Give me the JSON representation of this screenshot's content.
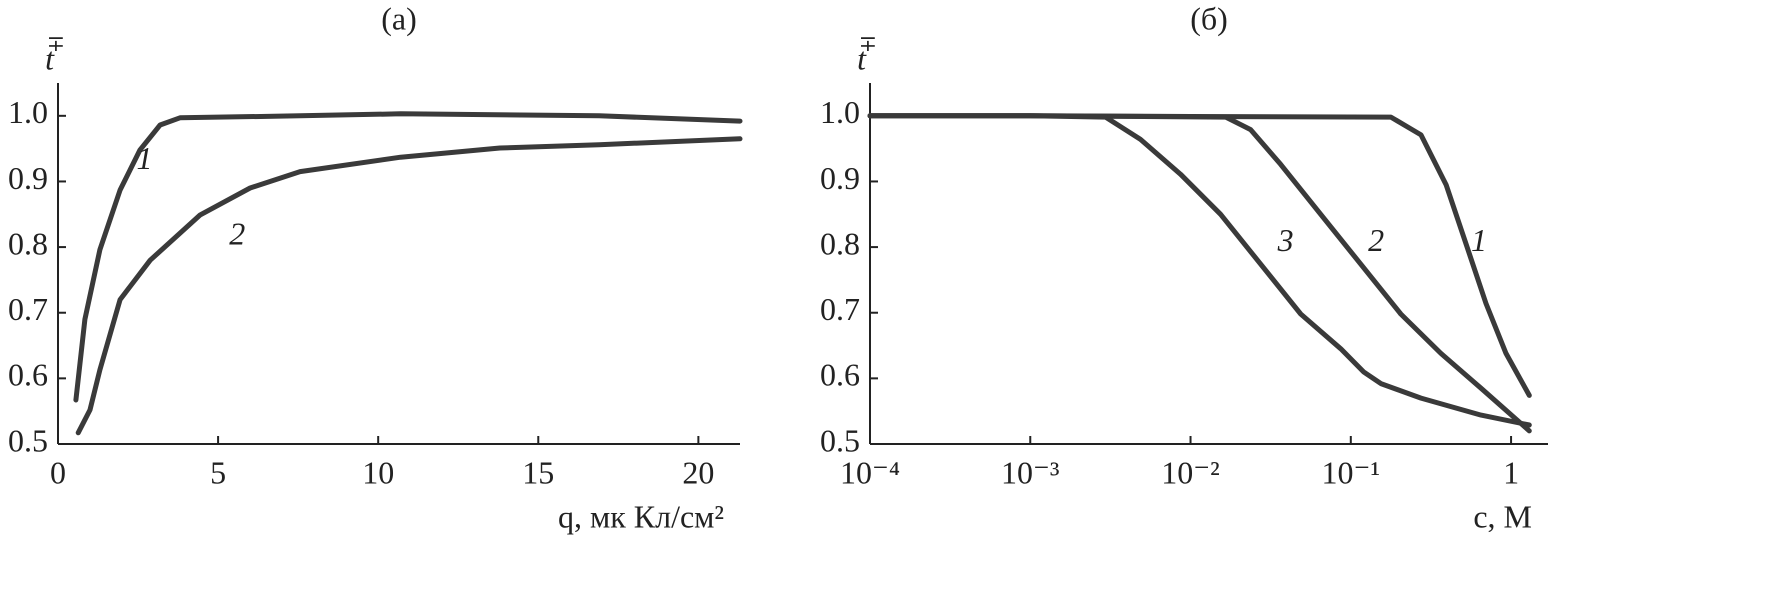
{
  "chart_data": [
    {
      "type": "line",
      "title": "(a)",
      "x_label": "q, мк Кл/см²",
      "y_label": "t",
      "y_label_superscript": "∓",
      "xscale": "linear",
      "xlim": [
        0,
        21.3
      ],
      "ylim": [
        0.5,
        1.05
      ],
      "xticks": [
        0,
        5,
        10,
        15,
        20
      ],
      "yticks": [
        0.5,
        0.6,
        0.7,
        0.8,
        0.9,
        {
          "value": 1,
          "label": "1.0"
        }
      ],
      "series": [
        {
          "name": "1",
          "color": "#3a3a3a",
          "label_x": 2.7,
          "label_y": 0.93,
          "x": [
            0.56,
            0.84,
            1.31,
            1.94,
            2.56,
            3.19,
            3.81,
            7.56,
            10.7,
            16.9,
            21.3
          ],
          "values": [
            0.567,
            0.69,
            0.796,
            0.887,
            0.948,
            0.986,
            0.997,
            1.0,
            1.003,
            1.0,
            0.992
          ]
        },
        {
          "name": "2",
          "color": "#3a3a3a",
          "label_x": 5.6,
          "label_y": 0.815,
          "x": [
            0.63,
            1.0,
            1.31,
            1.94,
            2.88,
            4.44,
            6.0,
            7.56,
            10.7,
            13.8,
            16.9,
            21.3
          ],
          "values": [
            0.517,
            0.552,
            0.613,
            0.72,
            0.78,
            0.849,
            0.89,
            0.915,
            0.937,
            0.951,
            0.956,
            0.965
          ]
        }
      ]
    },
    {
      "type": "line",
      "title": "(б)",
      "x_label": "c, M",
      "y_label": "t",
      "y_label_superscript": "∓",
      "xscale": "log",
      "xlim": [
        0.0001,
        1.7
      ],
      "ylim": [
        0.5,
        1.05
      ],
      "xticks": [
        {
          "value": 0.0001,
          "label": "10⁻⁴"
        },
        {
          "value": 0.001,
          "label": "10⁻³"
        },
        {
          "value": 0.01,
          "label": "10⁻²"
        },
        {
          "value": 0.1,
          "label": "10⁻¹"
        },
        1
      ],
      "yticks": [
        0.5,
        0.6,
        0.7,
        0.8,
        0.9,
        {
          "value": 1,
          "label": "1.0"
        }
      ],
      "series": [
        {
          "name": "1",
          "color": "#3a3a3a",
          "label_x": 0.631,
          "label_y": 0.805,
          "x": [
            0.0001,
            0.001,
            0.01,
            0.178,
            0.274,
            0.393,
            0.523,
            0.698,
            0.93,
            1.3
          ],
          "values": [
            1.0,
            1.0,
            0.999,
            0.998,
            0.971,
            0.895,
            0.805,
            0.714,
            0.638,
            0.574
          ]
        },
        {
          "name": "2",
          "color": "#3a3a3a",
          "label_x": 0.144,
          "label_y": 0.805,
          "x": [
            0.0001,
            0.001,
            0.0166,
            0.0237,
            0.0365,
            0.0649,
            0.1155,
            0.205,
            0.365,
            0.649,
            1.3
          ],
          "values": [
            1.0,
            1.0,
            0.998,
            0.979,
            0.926,
            0.85,
            0.774,
            0.698,
            0.638,
            0.585,
            0.52
          ]
        },
        {
          "name": "3",
          "color": "#3a3a3a",
          "label_x": 0.0392,
          "label_y": 0.805,
          "x": [
            0.0001,
            0.001,
            0.00295,
            0.00487,
            0.00866,
            0.0154,
            0.0274,
            0.0487,
            0.0866,
            0.12,
            0.154,
            0.274,
            0.649,
            1.3
          ],
          "values": [
            1.0,
            1.0,
            0.998,
            0.964,
            0.911,
            0.85,
            0.774,
            0.698,
            0.645,
            0.61,
            0.592,
            0.57,
            0.544,
            0.529
          ]
        }
      ]
    }
  ]
}
